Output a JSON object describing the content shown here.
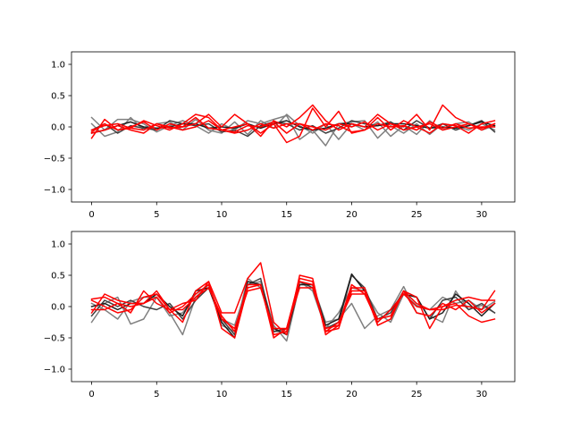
{
  "chart_data": [
    {
      "type": "line",
      "title": "",
      "xlabel": "",
      "ylabel": "",
      "xlim": [
        -1.55,
        32.55
      ],
      "ylim": [
        -1.2,
        1.2
      ],
      "xticks": [
        0,
        5,
        10,
        15,
        20,
        25,
        30
      ],
      "yticks": [
        -1.0,
        -0.5,
        0.0,
        0.5,
        1.0
      ],
      "grid": false,
      "x": [
        0,
        1,
        2,
        3,
        4,
        5,
        6,
        7,
        8,
        9,
        10,
        11,
        12,
        13,
        14,
        15,
        16,
        17,
        18,
        19,
        20,
        21,
        22,
        23,
        24,
        25,
        26,
        27,
        28,
        29,
        30,
        31
      ],
      "series": [
        {
          "color": "#808080",
          "values": [
            0.15,
            -0.05,
            0.12,
            0.12,
            0.05,
            -0.08,
            0.02,
            0.1,
            0.02,
            -0.1,
            0.05,
            -0.05,
            0.1,
            0.05,
            0.12,
            0.18,
            -0.2,
            -0.05,
            -0.3,
            0.05,
            0.08,
            0.1,
            -0.18,
            0.02,
            -0.1,
            0.05,
            -0.12,
            0.05,
            0.02,
            -0.05,
            0.05,
            -0.05
          ]
        },
        {
          "color": "#808080",
          "values": [
            0.05,
            -0.15,
            -0.08,
            0.15,
            -0.05,
            0.05,
            0.08,
            -0.05,
            0.12,
            -0.05,
            -0.1,
            0.08,
            -0.12,
            0.1,
            -0.02,
            0.2,
            0.02,
            -0.1,
            0.05,
            -0.2,
            0.05,
            -0.05,
            0.08,
            -0.15,
            0.02,
            -0.12,
            0.1,
            -0.05,
            0.05,
            0.08,
            -0.05,
            0.02
          ]
        },
        {
          "color": "#404040",
          "values": [
            -0.05,
            0.05,
            -0.1,
            0.02,
            -0.02,
            -0.05,
            0.1,
            0.05,
            0.02,
            0.05,
            -0.08,
            -0.05,
            -0.15,
            0.02,
            0.08,
            0.05,
            -0.05,
            0.02,
            -0.1,
            -0.02,
            0.1,
            0.05,
            0.02,
            0.08,
            -0.05,
            0.1,
            -0.02,
            0.05,
            -0.05,
            0.02,
            0.1,
            -0.08
          ]
        },
        {
          "color": "#202020",
          "values": [
            -0.1,
            -0.05,
            0.02,
            0.08,
            0.0,
            -0.02,
            0.0,
            0.05,
            0.05,
            -0.02,
            0.0,
            -0.02,
            0.05,
            -0.02,
            0.05,
            0.1,
            0.0,
            -0.05,
            -0.02,
            0.05,
            0.05,
            0.0,
            0.02,
            0.05,
            0.05,
            0.02,
            -0.02,
            0.0,
            -0.02,
            0.02,
            0.08,
            0.02
          ]
        },
        {
          "color": "#ff0000",
          "values": [
            -0.18,
            0.12,
            -0.05,
            -0.02,
            0.1,
            0.02,
            -0.05,
            0.05,
            0.2,
            0.15,
            -0.05,
            0.0,
            0.05,
            -0.1,
            0.05,
            -0.25,
            -0.15,
            0.3,
            0.0,
            0.25,
            -0.1,
            -0.05,
            0.15,
            -0.05,
            0.1,
            0.0,
            -0.1,
            0.05,
            0.02,
            -0.1,
            0.05,
            0.1
          ]
        },
        {
          "color": "#ff0000",
          "values": [
            -0.1,
            -0.05,
            0.02,
            -0.05,
            -0.1,
            0.05,
            -0.02,
            0.0,
            0.05,
            0.2,
            0.0,
            0.2,
            0.05,
            -0.15,
            0.1,
            0.0,
            0.15,
            0.35,
            0.1,
            -0.05,
            0.05,
            0.0,
            0.2,
            0.05,
            0.0,
            0.2,
            -0.05,
            0.35,
            0.15,
            0.05,
            -0.05,
            0.05
          ]
        },
        {
          "color": "#ff0000",
          "values": [
            -0.08,
            0.05,
            -0.05,
            0.0,
            0.08,
            -0.05,
            0.05,
            0.0,
            0.15,
            -0.02,
            -0.05,
            -0.1,
            -0.05,
            0.05,
            -0.02,
            0.05,
            0.05,
            -0.05,
            0.05,
            0.02,
            -0.08,
            -0.05,
            0.05,
            0.0,
            0.02,
            -0.05,
            0.08,
            -0.02,
            0.05,
            -0.02,
            0.0,
            0.0
          ]
        },
        {
          "color": "#ff0000",
          "values": [
            -0.05,
            0.02,
            0.05,
            -0.02,
            -0.05,
            0.05,
            0.0,
            -0.05,
            0.0,
            0.1,
            -0.05,
            -0.08,
            0.02,
            0.0,
            0.08,
            -0.1,
            0.05,
            0.0,
            -0.05,
            0.05,
            0.0,
            0.08,
            -0.05,
            0.05,
            -0.05,
            0.0,
            0.05,
            -0.05,
            0.0,
            0.05,
            -0.02,
            0.05
          ]
        }
      ]
    },
    {
      "type": "line",
      "title": "",
      "xlabel": "",
      "ylabel": "",
      "xlim": [
        -1.55,
        32.55
      ],
      "ylim": [
        -1.2,
        1.2
      ],
      "xticks": [
        0,
        5,
        10,
        15,
        20,
        25,
        30
      ],
      "yticks": [
        -1.0,
        -0.5,
        0.0,
        0.5,
        1.0
      ],
      "grid": false,
      "x": [
        0,
        1,
        2,
        3,
        4,
        5,
        6,
        7,
        8,
        9,
        10,
        11,
        12,
        13,
        14,
        15,
        16,
        17,
        18,
        19,
        20,
        21,
        22,
        23,
        24,
        25,
        26,
        27,
        28,
        29,
        30,
        31
      ],
      "series": [
        {
          "color": "#808080",
          "values": [
            -0.25,
            0.05,
            0.15,
            -0.28,
            -0.2,
            0.15,
            -0.1,
            -0.45,
            0.15,
            0.35,
            -0.2,
            -0.3,
            0.35,
            0.4,
            -0.3,
            -0.55,
            0.35,
            0.35,
            -0.25,
            -0.2,
            0.05,
            -0.35,
            -0.15,
            -0.05,
            0.32,
            -0.1,
            -0.15,
            -0.25,
            0.25,
            -0.05,
            0.02,
            -0.1
          ]
        },
        {
          "color": "#808080",
          "values": [
            0.05,
            -0.05,
            -0.2,
            0.08,
            0.15,
            0.15,
            -0.15,
            -0.1,
            0.2,
            0.35,
            -0.3,
            -0.4,
            0.45,
            0.3,
            -0.4,
            -0.4,
            0.4,
            0.25,
            -0.35,
            -0.1,
            0.3,
            0.25,
            -0.1,
            -0.25,
            0.2,
            0.02,
            -0.05,
            0.15,
            0.05,
            0.1,
            -0.05,
            0.08
          ]
        },
        {
          "color": "#404040",
          "values": [
            -0.15,
            0.1,
            0.0,
            0.1,
            0.0,
            -0.05,
            0.05,
            -0.2,
            0.1,
            0.3,
            -0.2,
            -0.45,
            0.35,
            0.45,
            -0.4,
            -0.35,
            0.4,
            0.3,
            -0.35,
            -0.25,
            0.5,
            0.3,
            -0.2,
            -0.1,
            0.25,
            0.15,
            -0.2,
            0.1,
            0.15,
            -0.05,
            0.05,
            -0.1
          ]
        },
        {
          "color": "#202020",
          "values": [
            0.0,
            0.05,
            -0.05,
            0.05,
            0.05,
            0.2,
            0.0,
            -0.15,
            0.25,
            0.3,
            -0.25,
            -0.5,
            0.4,
            0.35,
            -0.35,
            -0.45,
            0.35,
            0.35,
            -0.3,
            -0.2,
            0.52,
            0.25,
            -0.25,
            -0.05,
            0.2,
            0.15,
            -0.2,
            -0.1,
            0.2,
            0.05,
            -0.15,
            0.05
          ]
        },
        {
          "color": "#ff0000",
          "values": [
            0.12,
            0.15,
            0.05,
            -0.1,
            0.25,
            0.05,
            -0.05,
            0.05,
            0.1,
            0.4,
            -0.1,
            -0.1,
            0.45,
            0.7,
            -0.25,
            -0.45,
            0.5,
            0.45,
            -0.45,
            -0.3,
            0.25,
            0.25,
            -0.3,
            -0.2,
            0.25,
            0.05,
            -0.05,
            0.0,
            0.1,
            0.15,
            0.1,
            0.1
          ]
        },
        {
          "color": "#ff0000",
          "values": [
            -0.1,
            0.2,
            0.1,
            0.05,
            0.05,
            0.25,
            -0.05,
            -0.25,
            0.25,
            0.4,
            -0.35,
            -0.5,
            0.3,
            0.35,
            -0.5,
            -0.35,
            0.45,
            0.4,
            -0.4,
            -0.35,
            0.3,
            0.3,
            -0.3,
            -0.2,
            0.25,
            0.15,
            -0.35,
            0.0,
            0.05,
            -0.15,
            -0.25,
            -0.2
          ]
        },
        {
          "color": "#ff0000",
          "values": [
            0.1,
            0.0,
            -0.1,
            -0.05,
            0.15,
            0.2,
            -0.05,
            -0.05,
            0.15,
            0.3,
            -0.15,
            -0.4,
            0.35,
            0.35,
            -0.45,
            -0.4,
            0.4,
            0.35,
            -0.4,
            -0.25,
            0.2,
            0.2,
            -0.2,
            -0.15,
            0.25,
            -0.1,
            -0.15,
            0.05,
            -0.05,
            0.1,
            -0.1,
            0.05
          ]
        },
        {
          "color": "#ff0000",
          "values": [
            -0.05,
            -0.05,
            0.05,
            0.0,
            0.05,
            0.15,
            -0.1,
            0.0,
            0.2,
            0.35,
            -0.2,
            -0.35,
            0.25,
            0.3,
            -0.35,
            -0.35,
            0.3,
            0.3,
            -0.35,
            -0.3,
            0.35,
            0.2,
            -0.25,
            -0.05,
            0.2,
            0.0,
            -0.05,
            -0.05,
            0.02,
            0.0,
            -0.05,
            0.25
          ]
        }
      ]
    }
  ]
}
